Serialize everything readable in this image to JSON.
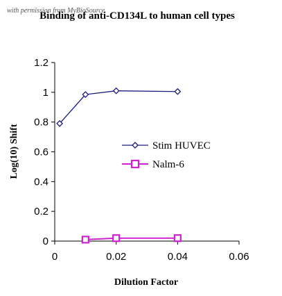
{
  "watermark": "with permission from MyBioSource",
  "chart_data": {
    "type": "line",
    "title": "Binding of anti-CD134L to human cell types",
    "xlabel": "Dilution Factor",
    "ylabel": "Log(10) Shift",
    "xlim": [
      0,
      0.06
    ],
    "ylim": [
      0,
      1.2
    ],
    "xticks": [
      "0",
      "0.02",
      "0.04",
      "0.06"
    ],
    "yticks": [
      "0",
      "0.2",
      "0.4",
      "0.6",
      "0.8",
      "1",
      "1.2"
    ],
    "grid": false,
    "legend_position": "center-right",
    "series": [
      {
        "name": "Stim HUVEC",
        "color": "#1a1a80",
        "marker": "diamond",
        "x": [
          0.0016,
          0.01,
          0.02,
          0.04
        ],
        "y": [
          0.79,
          0.985,
          1.01,
          1.005
        ]
      },
      {
        "name": "Nalm-6",
        "color": "#d020d0",
        "marker": "square",
        "x": [
          0.01,
          0.02,
          0.04
        ],
        "y": [
          0.01,
          0.02,
          0.02
        ]
      }
    ]
  }
}
